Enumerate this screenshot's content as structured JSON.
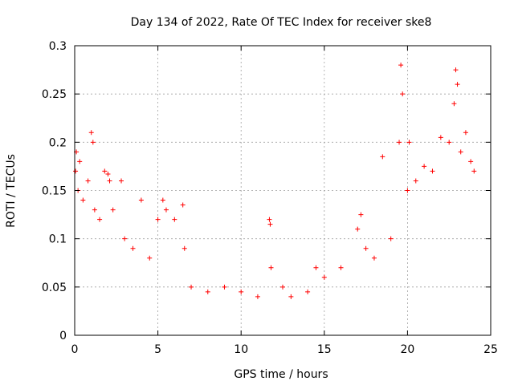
{
  "chart_data": {
    "type": "scatter",
    "title": "Day 134 of 2022, Rate Of TEC Index for receiver ske8",
    "xlabel": "GPS time / hours",
    "ylabel": "ROTI / TECUs",
    "xlim": [
      0,
      25
    ],
    "ylim": [
      0,
      0.3
    ],
    "x_ticks": [
      "0",
      "5",
      "10",
      "15",
      "20",
      "25"
    ],
    "y_ticks": [
      "0",
      "0.05",
      "0.1",
      "0.15",
      "0.2",
      "0.25",
      "0.3"
    ],
    "grid": true,
    "marker": "plus",
    "colors": {
      "series": "#ff0000",
      "axis": "#000000",
      "grid": "#a0a0a0"
    },
    "series": [
      {
        "values": [
          [
            0.05,
            0.17
          ],
          [
            0.1,
            0.19
          ],
          [
            0.2,
            0.15
          ],
          [
            0.3,
            0.18
          ],
          [
            0.5,
            0.14
          ],
          [
            0.8,
            0.16
          ],
          [
            1.0,
            0.21
          ],
          [
            1.1,
            0.2
          ],
          [
            1.2,
            0.13
          ],
          [
            1.5,
            0.12
          ],
          [
            1.8,
            0.17
          ],
          [
            2.0,
            0.167
          ],
          [
            2.1,
            0.16
          ],
          [
            2.3,
            0.13
          ],
          [
            2.8,
            0.16
          ],
          [
            3.0,
            0.1
          ],
          [
            3.5,
            0.09
          ],
          [
            4.0,
            0.14
          ],
          [
            4.5,
            0.08
          ],
          [
            5.0,
            0.12
          ],
          [
            5.3,
            0.14
          ],
          [
            5.5,
            0.13
          ],
          [
            6.0,
            0.12
          ],
          [
            6.5,
            0.135
          ],
          [
            6.6,
            0.09
          ],
          [
            7.0,
            0.05
          ],
          [
            8.0,
            0.045
          ],
          [
            9.0,
            0.05
          ],
          [
            10.0,
            0.045
          ],
          [
            11.0,
            0.04
          ],
          [
            11.7,
            0.12
          ],
          [
            11.75,
            0.115
          ],
          [
            11.8,
            0.07
          ],
          [
            12.5,
            0.05
          ],
          [
            13.0,
            0.04
          ],
          [
            14.0,
            0.045
          ],
          [
            14.5,
            0.07
          ],
          [
            15.0,
            0.06
          ],
          [
            16.0,
            0.07
          ],
          [
            17.0,
            0.11
          ],
          [
            17.2,
            0.125
          ],
          [
            17.5,
            0.09
          ],
          [
            18.0,
            0.08
          ],
          [
            18.5,
            0.185
          ],
          [
            19.0,
            0.1
          ],
          [
            19.5,
            0.2
          ],
          [
            19.6,
            0.28
          ],
          [
            19.7,
            0.25
          ],
          [
            20.0,
            0.15
          ],
          [
            20.1,
            0.2
          ],
          [
            20.5,
            0.16
          ],
          [
            21.0,
            0.175
          ],
          [
            21.5,
            0.17
          ],
          [
            22.0,
            0.205
          ],
          [
            22.5,
            0.2
          ],
          [
            22.8,
            0.24
          ],
          [
            22.9,
            0.275
          ],
          [
            23.0,
            0.26
          ],
          [
            23.2,
            0.19
          ],
          [
            23.5,
            0.21
          ],
          [
            23.8,
            0.18
          ],
          [
            24.0,
            0.17
          ]
        ]
      }
    ]
  }
}
